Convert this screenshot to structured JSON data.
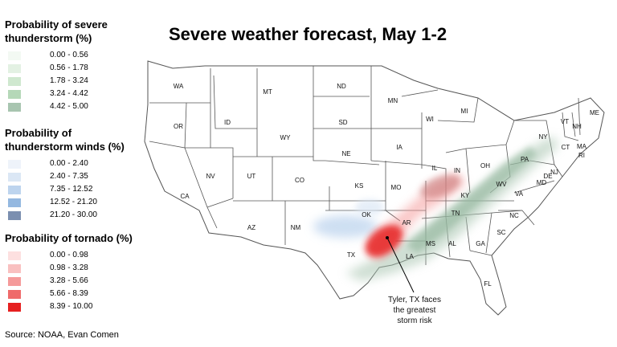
{
  "title": "Severe weather forecast, May 1-2",
  "source": "Source: NOAA, Evan Comen",
  "legend": {
    "storm": {
      "title_line1": "Probability of severe",
      "title_line2": "thunderstorm (%)",
      "items": [
        {
          "label": "0.00 - 0.56",
          "color": "#f3f9f3"
        },
        {
          "label": "0.56 - 1.78",
          "color": "#e3f1e3"
        },
        {
          "label": "1.78 - 3.24",
          "color": "#cfe8cf"
        },
        {
          "label": "3.24 - 4.42",
          "color": "#b5d8b8"
        },
        {
          "label": "4.42 - 5.00",
          "color": "#a8c5b0"
        }
      ]
    },
    "winds": {
      "title_line1": "Probability of",
      "title_line2": "thunderstorm winds (%)",
      "items": [
        {
          "label": "0.00 - 2.40",
          "color": "#eef3fa"
        },
        {
          "label": "2.40 - 7.35",
          "color": "#dbe7f5"
        },
        {
          "label": "7.35 - 12.52",
          "color": "#bdd4ee"
        },
        {
          "label": "12.52 - 21.20",
          "color": "#94b8e0"
        },
        {
          "label": "21.20 - 30.00",
          "color": "#7b8fb0"
        }
      ]
    },
    "tornado": {
      "title_line1": "Probability of tornado (%)",
      "items": [
        {
          "label": "0.00 - 0.98",
          "color": "#fde0e0"
        },
        {
          "label": "0.98 - 3.28",
          "color": "#f9c0c0"
        },
        {
          "label": "3.28 - 5.66",
          "color": "#f59a9a"
        },
        {
          "label": "5.66 - 8.39",
          "color": "#ef6b6b"
        },
        {
          "label": "8.39 - 10.00",
          "color": "#e62020"
        }
      ]
    }
  },
  "states": [
    "WA",
    "OR",
    "CA",
    "ID",
    "NV",
    "MT",
    "WY",
    "UT",
    "AZ",
    "CO",
    "NM",
    "ND",
    "SD",
    "NE",
    "KS",
    "OK",
    "TX",
    "MN",
    "IA",
    "MO",
    "AR",
    "LA",
    "WI",
    "IL",
    "MS",
    "MI",
    "IN",
    "KY",
    "TN",
    "AL",
    "OH",
    "GA",
    "FL",
    "WV",
    "VA",
    "NC",
    "SC",
    "PA",
    "NY",
    "MD",
    "VT",
    "NH",
    "ME",
    "MA",
    "CT",
    "RI",
    "NJ",
    "DE"
  ],
  "callout": {
    "line1": "Tyler, TX faces",
    "line2": "the greatest",
    "line3": "storm risk"
  }
}
